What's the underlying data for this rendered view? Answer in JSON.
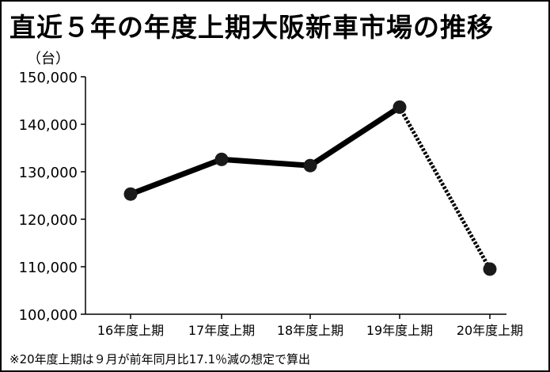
{
  "chart_data": {
    "type": "line",
    "title": "直近５年の年度上期大阪新車市場の推移",
    "unit": "（台）",
    "categories": [
      "16年度上期",
      "17年度上期",
      "18年度上期",
      "19年度上期",
      "20年度上期"
    ],
    "values": [
      125300,
      132600,
      131300,
      143600,
      109500
    ],
    "estimated_from_index": 3,
    "ylim": [
      100000,
      150000
    ],
    "yticks": [
      100000,
      110000,
      120000,
      130000,
      140000,
      150000
    ],
    "ytick_labels": [
      "100,000",
      "110,000",
      "120,000",
      "130,000",
      "140,000",
      "150,000"
    ],
    "grid": false,
    "legend": "none",
    "note": "※20年度上期は９月が前年同月比17.1％減の想定で算出",
    "colors": {
      "line": "#000000",
      "marker": "#1a1a1a"
    }
  }
}
